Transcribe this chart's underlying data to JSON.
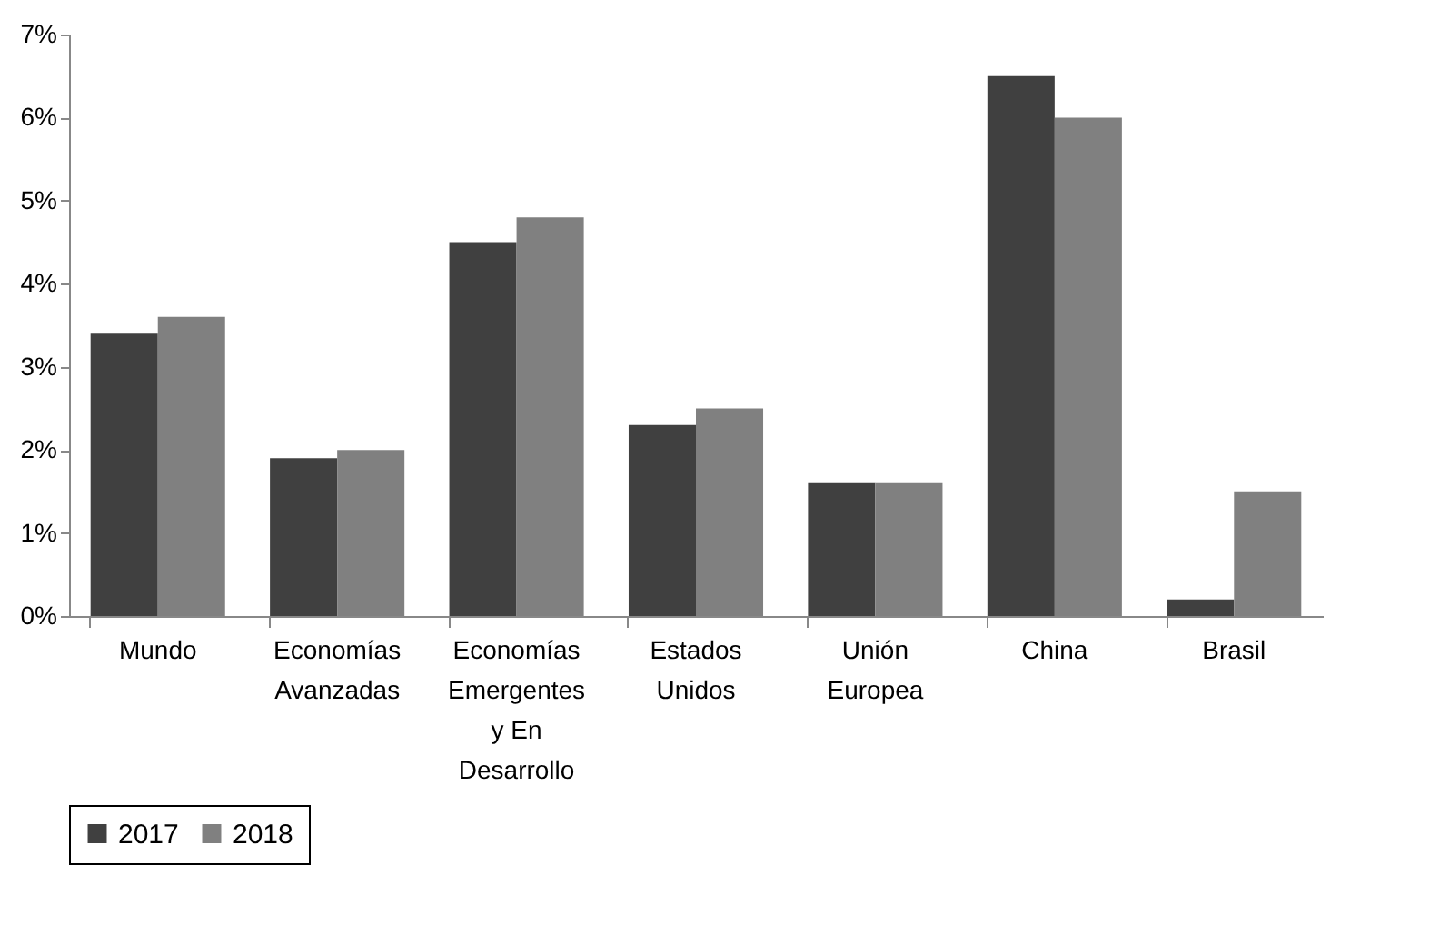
{
  "chart_data": {
    "type": "bar",
    "categories": [
      "Mundo",
      "Economías Avanzadas",
      "Economías Emergentes y En Desarrollo",
      "Estados Unidos",
      "Unión Europea",
      "China",
      "Brasil"
    ],
    "series": [
      {
        "name": "2017",
        "color": "#404040",
        "values": [
          3.4,
          1.9,
          4.5,
          2.3,
          1.6,
          6.5,
          0.2
        ]
      },
      {
        "name": "2018",
        "color": "#808080",
        "values": [
          3.6,
          2.0,
          4.8,
          2.5,
          1.6,
          6.0,
          1.5
        ]
      }
    ],
    "ylim": [
      0,
      7
    ],
    "yticks": [
      {
        "value": 0,
        "label": "0%"
      },
      {
        "value": 1,
        "label": "1%"
      },
      {
        "value": 2,
        "label": "2%"
      },
      {
        "value": 3,
        "label": "3%"
      },
      {
        "value": 4,
        "label": "4%"
      },
      {
        "value": 5,
        "label": "5%"
      },
      {
        "value": 6,
        "label": "6%"
      },
      {
        "value": 7,
        "label": "7%"
      }
    ],
    "grid": false,
    "legend": "bottom"
  }
}
